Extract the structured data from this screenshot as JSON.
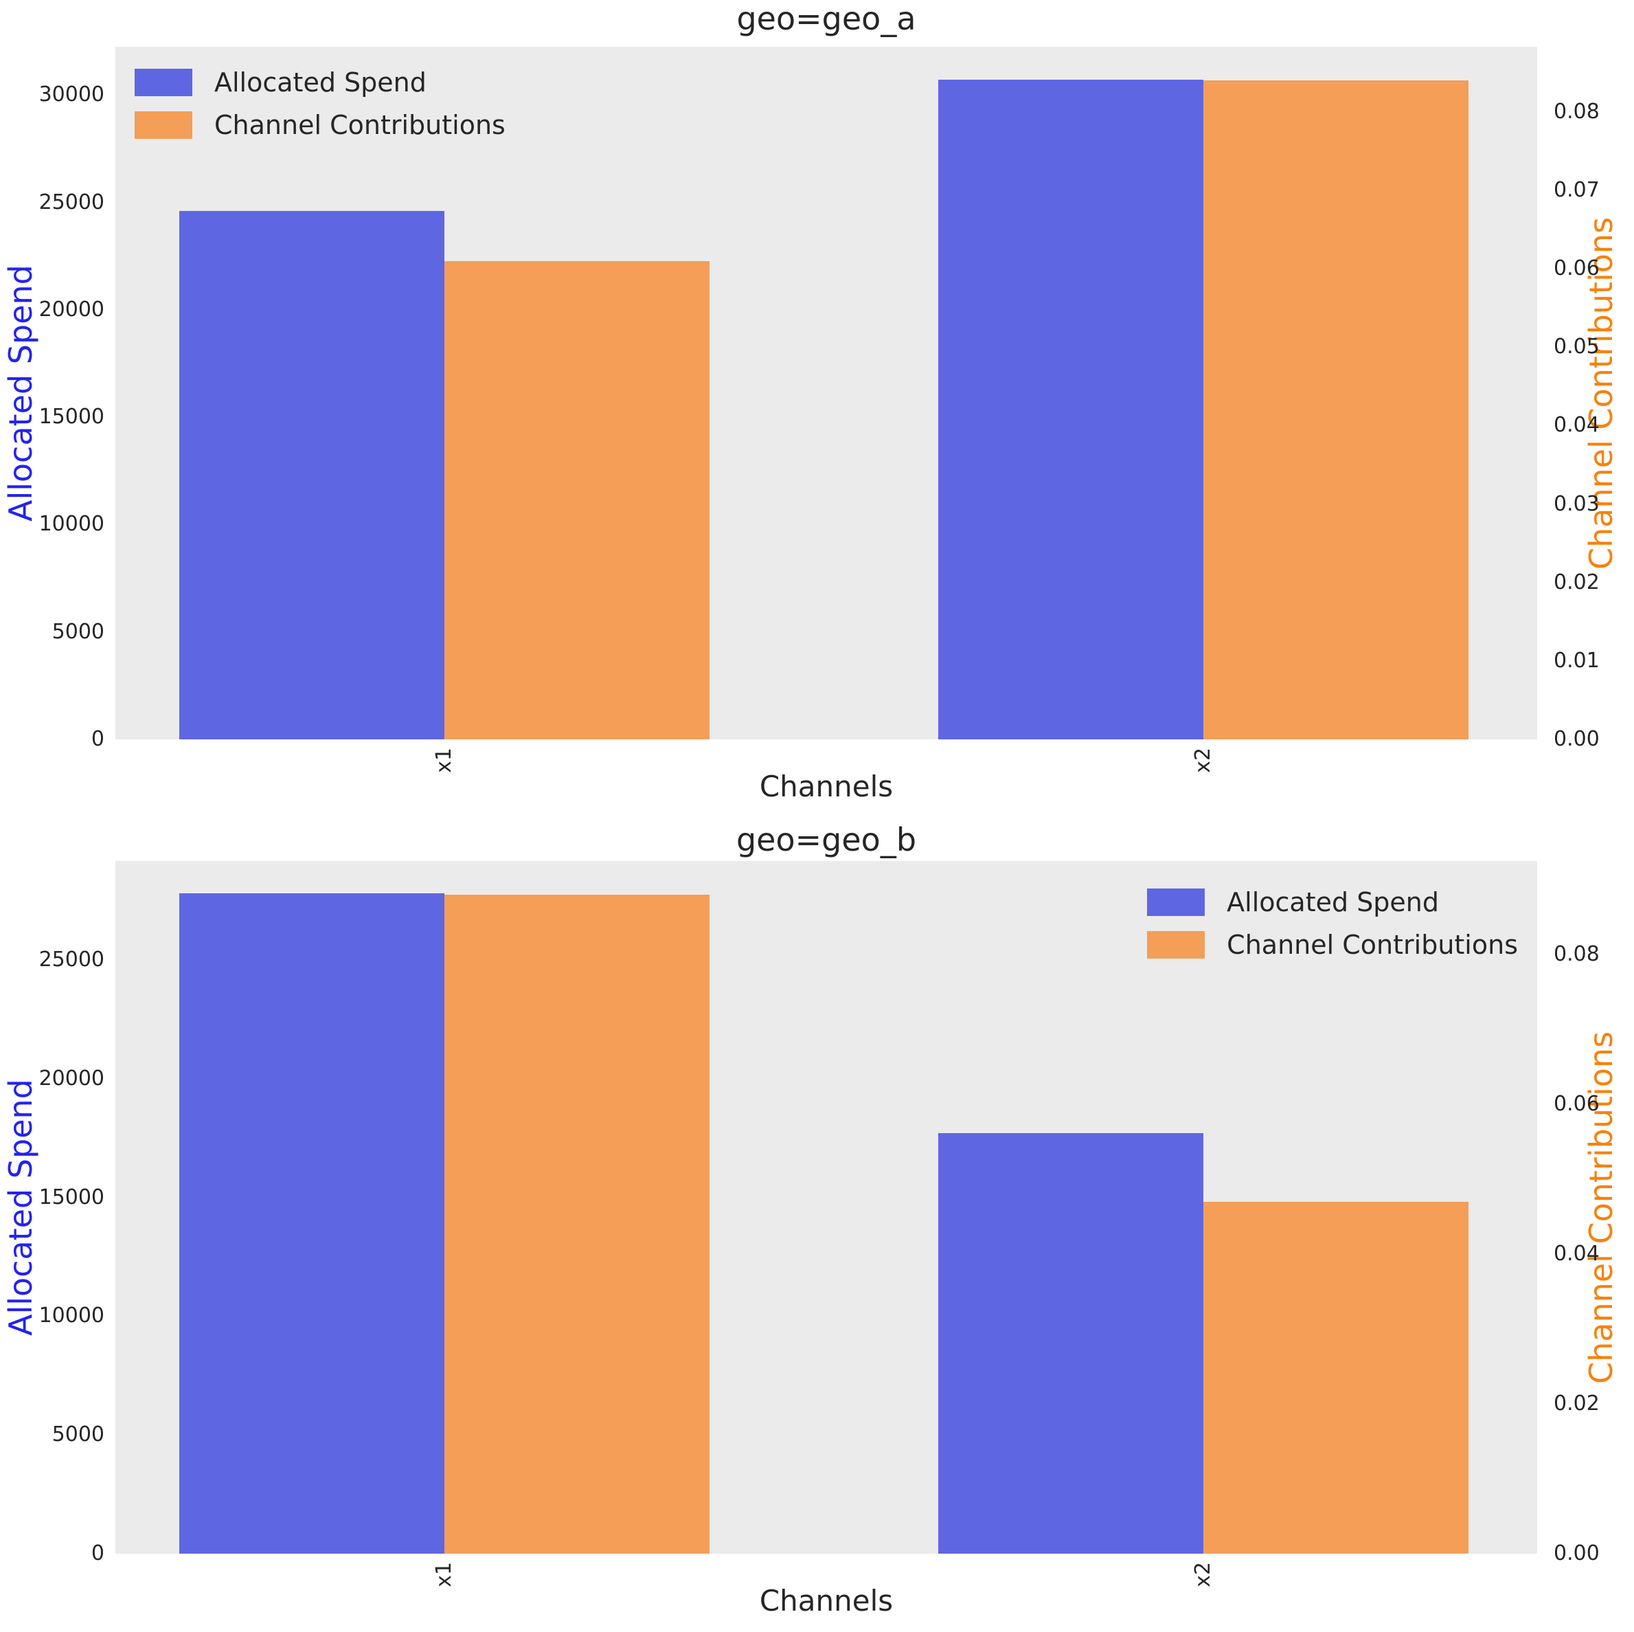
{
  "figure": {
    "background": "#ffffff",
    "plot_background": "#ebebeb",
    "text_color": "#262626"
  },
  "chart_data": [
    {
      "type": "bar",
      "title": "geo=geo_a",
      "xlabel": "Channels",
      "categories": [
        "x1",
        "x2"
      ],
      "series": [
        {
          "name": "Allocated Spend",
          "axis": "left",
          "color": "#5f66e2",
          "values": [
            24600,
            30700
          ]
        },
        {
          "name": "Channel Contributions",
          "axis": "right",
          "color": "#f49e57",
          "values": [
            0.061,
            0.084
          ]
        }
      ],
      "left_axis": {
        "label": "Allocated Spend",
        "color": "#2323ee",
        "max": 32250,
        "tick_values": [
          0,
          5000,
          10000,
          15000,
          20000,
          25000,
          30000
        ],
        "tick_labels": [
          "0",
          "5000",
          "10000",
          "15000",
          "20000",
          "25000",
          "30000"
        ]
      },
      "right_axis": {
        "label": "Channel Contributions",
        "color": "#f7820d",
        "max": 0.0883,
        "tick_values": [
          0,
          0.01,
          0.02,
          0.03,
          0.04,
          0.05,
          0.06,
          0.07,
          0.08
        ],
        "tick_labels": [
          "0.00",
          "0.01",
          "0.02",
          "0.03",
          "0.04",
          "0.05",
          "0.06",
          "0.07",
          "0.08"
        ]
      },
      "legend": {
        "position": "upper-left",
        "entries": [
          {
            "label": "Allocated Spend",
            "color": "#5f66e2"
          },
          {
            "label": "Channel Contributions",
            "color": "#f49e57"
          }
        ]
      },
      "grid": false,
      "layout": {
        "category_centers": [
          0.2314,
          0.7652
        ],
        "bar_width": 0.1866
      }
    },
    {
      "type": "bar",
      "title": "geo=geo_b",
      "xlabel": "Channels",
      "categories": [
        "x1",
        "x2"
      ],
      "series": [
        {
          "name": "Allocated Spend",
          "axis": "left",
          "color": "#5f66e2",
          "values": [
            27800,
            17700
          ]
        },
        {
          "name": "Channel Contributions",
          "axis": "right",
          "color": "#f49e57",
          "values": [
            0.088,
            0.047
          ]
        }
      ],
      "left_axis": {
        "label": "Allocated Spend",
        "color": "#2323ee",
        "max": 29170,
        "tick_values": [
          0,
          5000,
          10000,
          15000,
          20000,
          25000
        ],
        "tick_labels": [
          "0",
          "5000",
          "10000",
          "15000",
          "20000",
          "25000"
        ]
      },
      "right_axis": {
        "label": "Channel Contributions",
        "color": "#f7820d",
        "max": 0.0925,
        "tick_values": [
          0,
          0.02,
          0.04,
          0.06,
          0.08
        ],
        "tick_labels": [
          "0.00",
          "0.02",
          "0.04",
          "0.06",
          "0.08"
        ]
      },
      "legend": {
        "position": "upper-right",
        "entries": [
          {
            "label": "Allocated Spend",
            "color": "#5f66e2"
          },
          {
            "label": "Channel Contributions",
            "color": "#f49e57"
          }
        ]
      },
      "grid": false,
      "layout": {
        "category_centers": [
          0.2314,
          0.7652
        ],
        "bar_width": 0.1866
      }
    }
  ]
}
